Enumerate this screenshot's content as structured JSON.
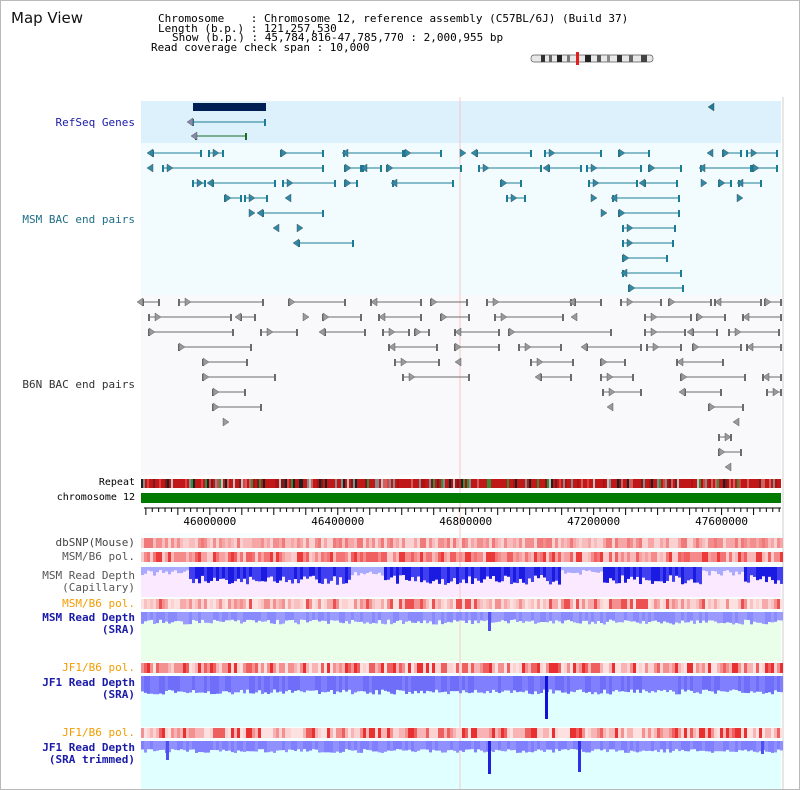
{
  "header": {
    "title": "Map View",
    "chromosome": "Chromosome    : Chromosome 12, reference assembly (C57BL/6J) (Build 37)",
    "length": "Length (b.p.) : 121,257,530",
    "show": "Show (b.p.) : 45,784,816-47,785,770 : 2,000,955 bp",
    "read_coverage": "Read coverage check span : 10,000"
  },
  "tracks": {
    "refseq": "RefSeq Genes",
    "msm_bac": "MSM BAC end pairs",
    "b6n_bac": "B6N BAC end pairs",
    "repeat": "Repeat",
    "chromosome": "chromosome 12",
    "dbsnp": "dbSNP(Mouse)",
    "msm_b6_pol_1": "MSM/B6 pol.",
    "msm_read_depth_cap_1": "MSM Read Depth",
    "msm_read_depth_cap_2": "(Capillary)",
    "msm_b6_pol_2": "MSM/B6 pol.",
    "msm_read_depth_sra_1": "MSM Read Depth",
    "msm_read_depth_sra_2": "(SRA)",
    "jf1_b6_pol_1": "JF1/B6 pol.",
    "jf1_read_depth_sra_1": "JF1 Read Depth",
    "jf1_read_depth_sra_2": "(SRA)",
    "jf1_b6_pol_2": "JF1/B6 pol.",
    "jf1_read_depth_trim_1": "JF1 Read Depth",
    "jf1_read_depth_trim_2": "(SRA trimmed)"
  },
  "axis": {
    "ticks": [
      "46000000",
      "46400000",
      "46800000",
      "47200000",
      "47600000"
    ],
    "tick_values": [
      46000000,
      46400000,
      46800000,
      47200000,
      47600000
    ],
    "range_start": 45784816,
    "range_end": 47785770
  },
  "colors": {
    "refseq_band": "#dcf1fb",
    "track_band": "#f2fcff",
    "gene_dark": "#001f55",
    "msm_bac": "#1c7b95",
    "b6n_bac": "#6b6b6b",
    "chromosome": "#007a00",
    "read_depth": "#2a2ae0",
    "pol": "#ea3a3a",
    "label_blue": "#1a1aa8",
    "label_teal": "#1f6e86",
    "label_orange": "#f29c00"
  }
}
